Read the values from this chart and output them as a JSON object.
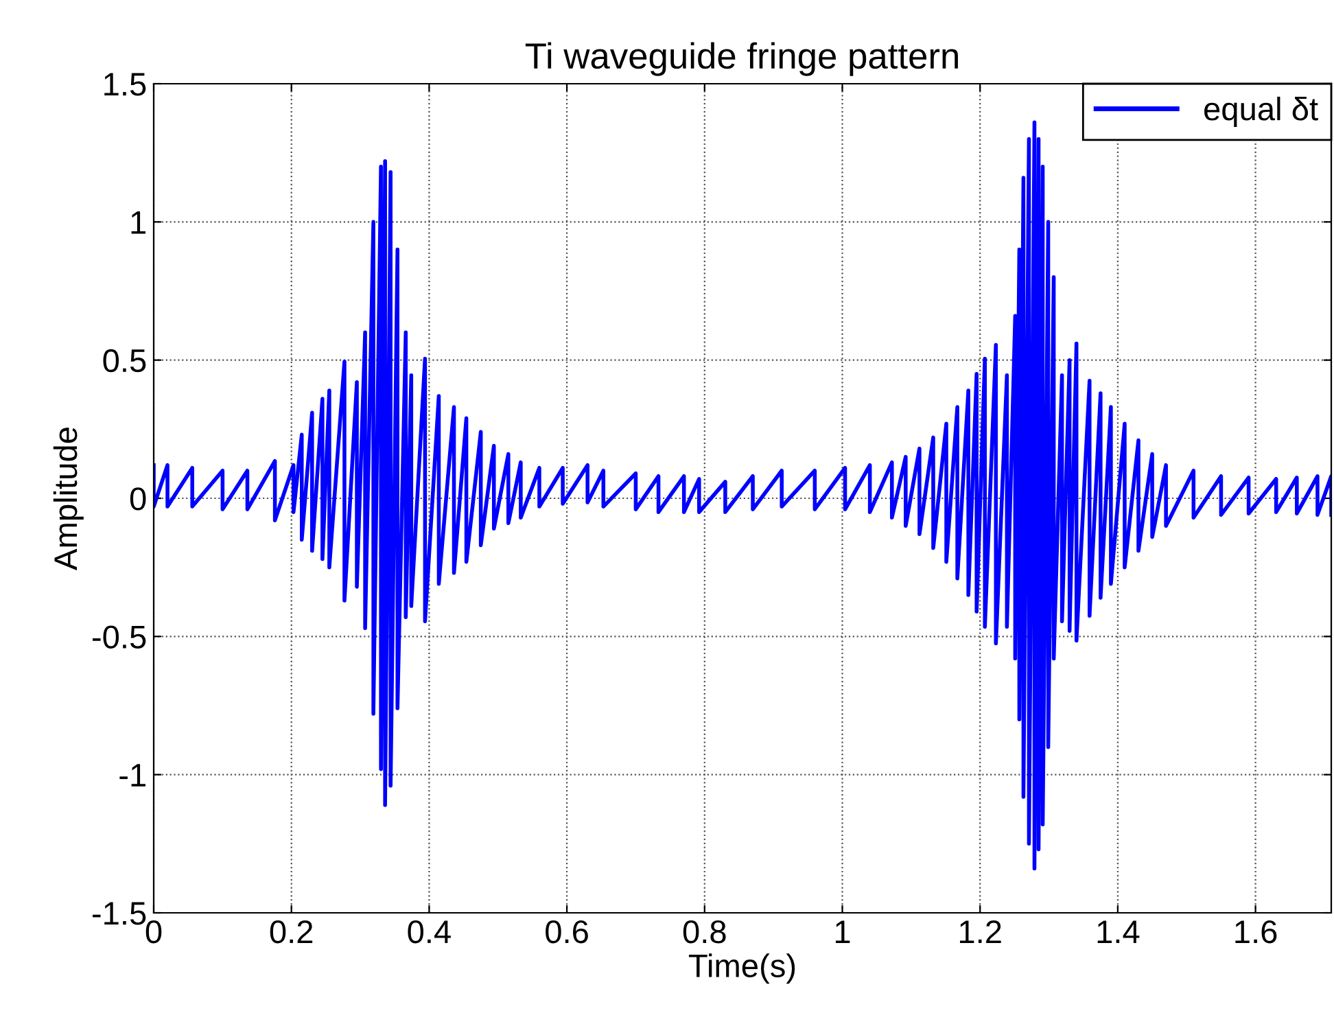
{
  "chart_data": {
    "type": "line",
    "title": "Ti waveguide fringe pattern",
    "xlabel": "Time(s)",
    "ylabel": "Amplitude",
    "xlim": [
      0,
      1.71
    ],
    "ylim": [
      -1.5,
      1.5
    ],
    "xticks": [
      0,
      0.2,
      0.4,
      0.6,
      0.8,
      1,
      1.2,
      1.4,
      1.6
    ],
    "yticks": [
      -1.5,
      -1,
      -0.5,
      0,
      0.5,
      1,
      1.5
    ],
    "grid": true,
    "legend": "top right",
    "line_style": "solid",
    "marker": "none",
    "series": [
      {
        "name": "equal δt",
        "color": "#0000ff",
        "x": [
          0,
          0,
          0.02,
          0.02,
          0.056,
          0.056,
          0.1,
          0.1,
          0.136,
          0.136,
          0.176,
          0.176,
          0.203,
          0.203,
          0.215,
          0.215,
          0.23,
          0.23,
          0.245,
          0.245,
          0.255,
          0.255,
          0.277,
          0.277,
          0.295,
          0.295,
          0.307,
          0.307,
          0.319,
          0.319,
          0.33,
          0.33,
          0.336,
          0.336,
          0.344,
          0.344,
          0.354,
          0.354,
          0.366,
          0.366,
          0.374,
          0.374,
          0.394,
          0.394,
          0.414,
          0.414,
          0.436,
          0.436,
          0.454,
          0.454,
          0.475,
          0.475,
          0.494,
          0.494,
          0.515,
          0.515,
          0.533,
          0.533,
          0.56,
          0.56,
          0.594,
          0.594,
          0.63,
          0.63,
          0.653,
          0.653,
          0.7,
          0.7,
          0.733,
          0.733,
          0.77,
          0.77,
          0.792,
          0.792,
          0.83,
          0.83,
          0.87,
          0.87,
          0.912,
          0.912,
          0.96,
          0.96,
          1.004,
          1.004,
          1.04,
          1.04,
          1.072,
          1.072,
          1.092,
          1.092,
          1.112,
          1.112,
          1.132,
          1.132,
          1.151,
          1.151,
          1.167,
          1.167,
          1.183,
          1.183,
          1.195,
          1.195,
          1.207,
          1.207,
          1.223,
          1.223,
          1.239,
          1.239,
          1.251,
          1.251,
          1.257,
          1.257,
          1.263,
          1.263,
          1.271,
          1.271,
          1.279,
          1.279,
          1.285,
          1.285,
          1.291,
          1.291,
          1.299,
          1.299,
          1.307,
          1.307,
          1.319,
          1.319,
          1.33,
          1.33,
          1.34,
          1.34,
          1.359,
          1.359,
          1.375,
          1.375,
          1.39,
          1.39,
          1.41,
          1.41,
          1.43,
          1.43,
          1.45,
          1.45,
          1.47,
          1.47,
          1.51,
          1.51,
          1.55,
          1.55,
          1.59,
          1.59,
          1.63,
          1.63,
          1.66,
          1.66,
          1.69,
          1.69,
          1.71,
          1.71
        ],
        "values": [
          0.12,
          -0.03,
          0.12,
          -0.03,
          0.11,
          -0.03,
          0.1,
          -0.04,
          0.1,
          -0.04,
          0.135,
          -0.08,
          0.12,
          -0.05,
          0.23,
          -0.15,
          0.31,
          -0.19,
          0.36,
          -0.22,
          0.39,
          -0.25,
          0.495,
          -0.37,
          0.42,
          -0.32,
          0.6,
          -0.47,
          1.0,
          -0.78,
          1.2,
          -0.98,
          1.22,
          -1.11,
          1.18,
          -1.04,
          0.9,
          -0.76,
          0.6,
          -0.43,
          0.445,
          -0.39,
          0.505,
          -0.445,
          0.37,
          -0.31,
          0.33,
          -0.27,
          0.29,
          -0.23,
          0.24,
          -0.17,
          0.19,
          -0.11,
          0.16,
          -0.09,
          0.13,
          -0.07,
          0.11,
          -0.03,
          0.11,
          -0.02,
          0.12,
          -0.015,
          0.1,
          -0.03,
          0.09,
          -0.04,
          0.08,
          -0.05,
          0.08,
          -0.05,
          0.07,
          -0.05,
          0.06,
          -0.05,
          0.08,
          -0.04,
          0.1,
          -0.03,
          0.1,
          -0.04,
          0.11,
          -0.04,
          0.12,
          -0.05,
          0.13,
          -0.07,
          0.15,
          -0.1,
          0.18,
          -0.13,
          0.22,
          -0.18,
          0.27,
          -0.23,
          0.33,
          -0.29,
          0.39,
          -0.35,
          0.45,
          -0.41,
          0.505,
          -0.465,
          0.555,
          -0.525,
          0.445,
          -0.465,
          0.66,
          -0.58,
          0.9,
          -0.8,
          1.16,
          -1.08,
          1.3,
          -1.25,
          1.36,
          -1.34,
          1.3,
          -1.27,
          1.2,
          -1.18,
          1.0,
          -0.9,
          0.8,
          -0.58,
          0.445,
          -0.445,
          0.5,
          -0.48,
          0.56,
          -0.515,
          0.425,
          -0.425,
          0.38,
          -0.36,
          0.33,
          -0.31,
          0.27,
          -0.25,
          0.21,
          -0.19,
          0.16,
          -0.14,
          0.12,
          -0.1,
          0.1,
          -0.07,
          0.08,
          -0.06,
          0.075,
          -0.055,
          0.07,
          -0.05,
          0.075,
          -0.055,
          0.08,
          -0.06,
          0.08,
          -0.06
        ]
      }
    ]
  }
}
